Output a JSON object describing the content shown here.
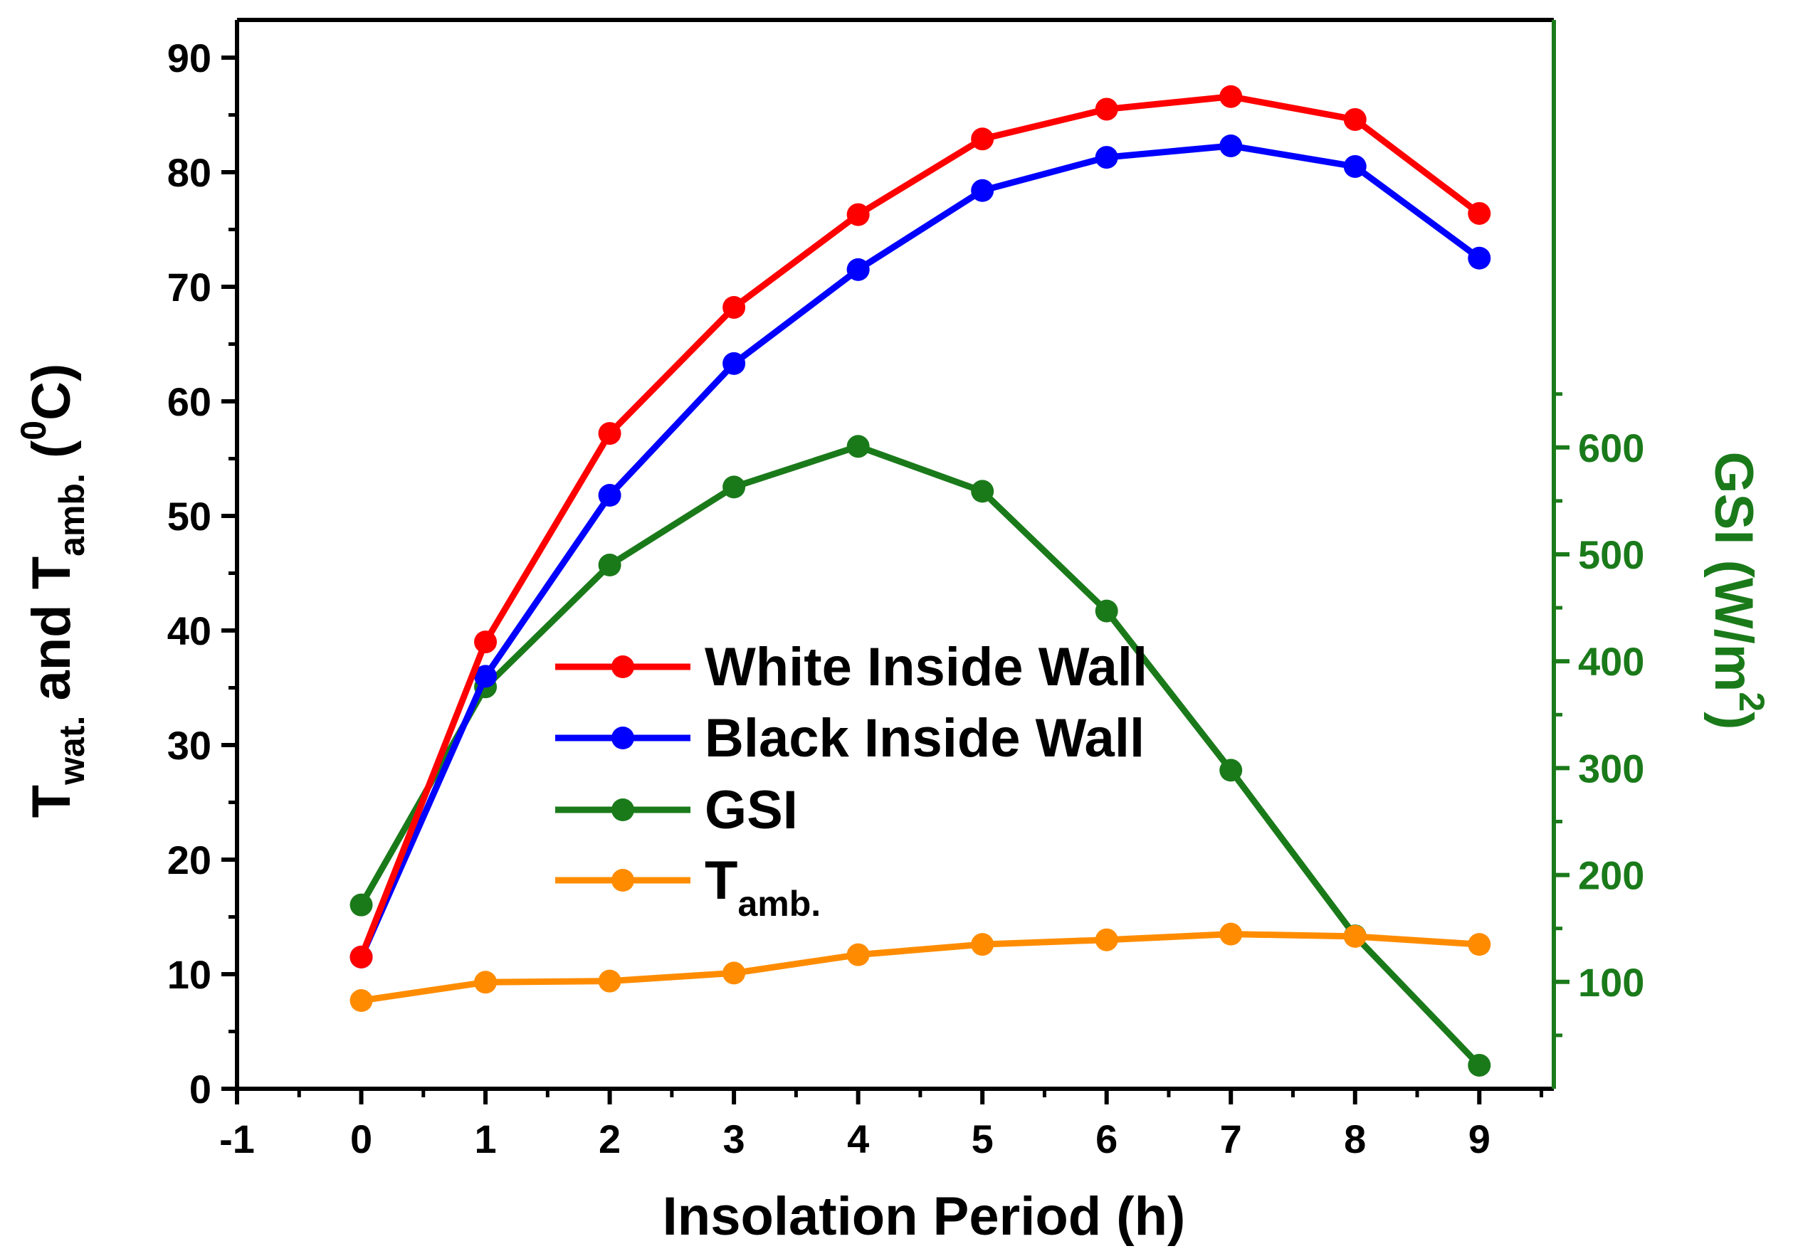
{
  "chart_data": {
    "type": "line",
    "x": [
      0,
      1,
      2,
      3,
      4,
      5,
      6,
      7,
      8,
      9
    ],
    "xlim": [
      -1,
      9.6
    ],
    "xticks": [
      -1,
      0,
      1,
      2,
      3,
      4,
      5,
      6,
      7,
      8,
      9
    ],
    "xlabel": "Insolation Period (h)",
    "ylim": [
      0,
      90
    ],
    "yticks": [
      0,
      10,
      20,
      30,
      40,
      50,
      60,
      70,
      80,
      90
    ],
    "ylabel": {
      "t1": "T",
      "s1": "wat.",
      "and": " and T",
      "s2": "amb.",
      "open": " (",
      "sup": "0",
      "close": "C)"
    },
    "y2lim": [
      0,
      1000
    ],
    "y2ticks": [
      100,
      200,
      300,
      400,
      500,
      600
    ],
    "y2minor": [
      50,
      150,
      250,
      350,
      450,
      550,
      650
    ],
    "y2label": {
      "main": "GSI (W/m",
      "sup": "2",
      "close": ")"
    },
    "grid": false,
    "legend_position": "center",
    "series": [
      {
        "name": "White Inside Wall",
        "axis": "left",
        "color": "#ff0000",
        "values": [
          11.5,
          39,
          57.2,
          68.2,
          76.3,
          82.9,
          85.5,
          86.6,
          84.6,
          76.4
        ]
      },
      {
        "name": "Black Inside Wall",
        "axis": "left",
        "color": "#0000ff",
        "values": [
          11.5,
          36,
          51.8,
          63.3,
          71.5,
          78.4,
          81.3,
          82.3,
          80.5,
          72.5
        ]
      },
      {
        "name": "GSI",
        "axis": "right",
        "color": "#1a7a1a",
        "values": [
          172,
          376,
          490,
          563,
          601,
          559,
          447,
          298,
          143,
          22
        ]
      },
      {
        "name": "T",
        "subscript": "amb.",
        "axis": "left",
        "color": "#ff8c00",
        "values": [
          7.7,
          9.3,
          9.4,
          10.1,
          11.7,
          12.6,
          13.0,
          13.5,
          13.3,
          12.6
        ]
      }
    ]
  }
}
